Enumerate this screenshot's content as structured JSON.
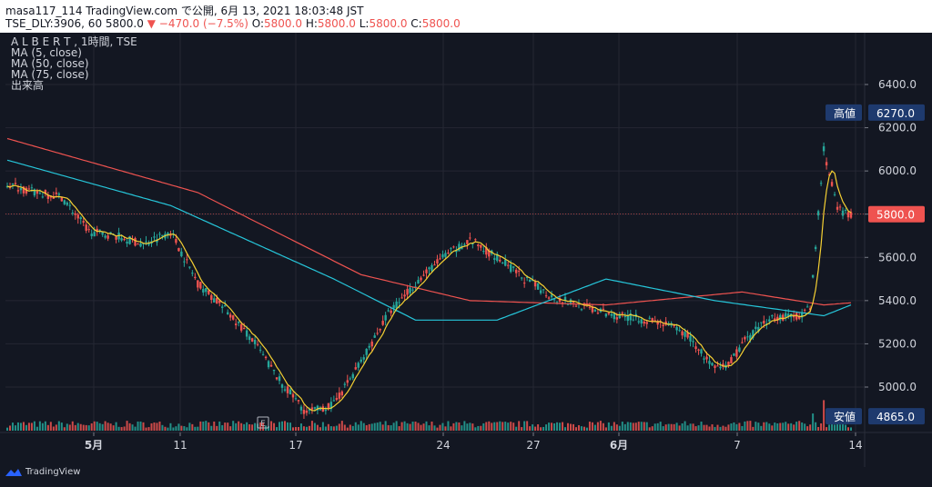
{
  "header": {
    "line1": "masa117_114 TradingView.com で公開, 6月 13, 2021 18:03:48 JST",
    "symbol_line": "TSE_DLY:3906, 60 5800.0",
    "change": "▼ −470.0 (−7.5%)",
    "ohlc": [
      {
        "label": "O:",
        "value": "5800.0"
      },
      {
        "label": "H:",
        "value": "5800.0"
      },
      {
        "label": "L:",
        "value": "5800.0"
      },
      {
        "label": "C:",
        "value": "5800.0"
      }
    ]
  },
  "legend": {
    "title": "A L B E R T , 1時間, TSE",
    "items": [
      "MA (5, close)",
      "MA (50, close)",
      "MA (75, close)",
      "出来高"
    ]
  },
  "price_axis": {
    "ticks": [
      "6400.0",
      "6200.0",
      "6000.0",
      "5800.0",
      "5600.0",
      "5400.0",
      "5200.0",
      "5000.0"
    ],
    "high_label": "高値",
    "high_value": "6270.0",
    "low_label": "安値",
    "low_value": "4865.0",
    "last_value": "5800.0"
  },
  "time_axis": {
    "ticks": [
      "5月",
      "11",
      "17",
      "24",
      "27",
      "6月",
      "7",
      "14"
    ]
  },
  "event_marker": "E",
  "branding": "TradingView",
  "colors": {
    "up": "#26a69a",
    "down": "#ef5350",
    "ma5": "#f5d033",
    "ma50": "#26c6da",
    "ma75": "#ef5350",
    "bg": "#131722"
  },
  "chart_data": {
    "type": "candlestick",
    "y_range": [
      4840,
      6500
    ],
    "price_keypoints": [
      [
        0,
        5940
      ],
      [
        10,
        5900
      ],
      [
        20,
        5880
      ],
      [
        30,
        5720
      ],
      [
        40,
        5700
      ],
      [
        50,
        5660
      ],
      [
        60,
        5720
      ],
      [
        70,
        5480
      ],
      [
        80,
        5360
      ],
      [
        90,
        5220
      ],
      [
        100,
        5030
      ],
      [
        110,
        4880
      ],
      [
        120,
        4920
      ],
      [
        130,
        5120
      ],
      [
        140,
        5340
      ],
      [
        150,
        5480
      ],
      [
        160,
        5600
      ],
      [
        170,
        5680
      ],
      [
        180,
        5600
      ],
      [
        190,
        5500
      ],
      [
        200,
        5420
      ],
      [
        210,
        5380
      ],
      [
        220,
        5340
      ],
      [
        230,
        5320
      ],
      [
        240,
        5300
      ],
      [
        250,
        5240
      ],
      [
        260,
        5080
      ],
      [
        265,
        5100
      ],
      [
        270,
        5200
      ],
      [
        280,
        5320
      ],
      [
        290,
        5330
      ],
      [
        295,
        5360
      ],
      [
        300,
        6100
      ],
      [
        305,
        5820
      ],
      [
        310,
        5800
      ]
    ],
    "ma50_keypoints": [
      [
        0,
        6050
      ],
      [
        60,
        5840
      ],
      [
        120,
        5500
      ],
      [
        150,
        5310
      ],
      [
        180,
        5310
      ],
      [
        220,
        5500
      ],
      [
        260,
        5400
      ],
      [
        300,
        5330
      ],
      [
        310,
        5380
      ]
    ],
    "ma75_keypoints": [
      [
        0,
        6150
      ],
      [
        70,
        5900
      ],
      [
        130,
        5520
      ],
      [
        170,
        5400
      ],
      [
        220,
        5380
      ],
      [
        270,
        5440
      ],
      [
        300,
        5380
      ],
      [
        310,
        5390
      ]
    ],
    "volume_spikes": [
      [
        97,
        0.25
      ],
      [
        110,
        0.1
      ],
      [
        160,
        0.2
      ],
      [
        270,
        0.12
      ],
      [
        296,
        0.45
      ],
      [
        300,
        0.8
      ],
      [
        303,
        0.2
      ]
    ]
  }
}
